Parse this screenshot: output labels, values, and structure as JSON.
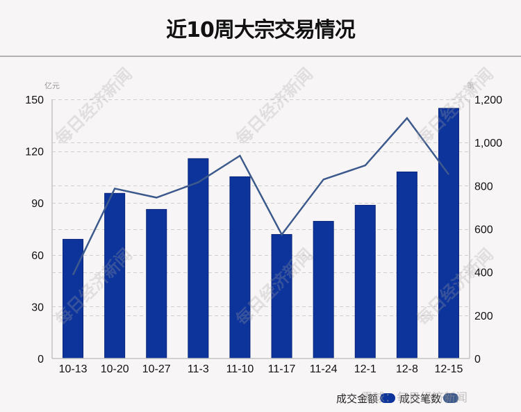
{
  "header": {
    "title": "近10周大宗交易情况"
  },
  "axes": {
    "left_unit": "亿元",
    "right_unit": "笔",
    "left_ticks": [
      "0",
      "30",
      "60",
      "90",
      "120",
      "150"
    ],
    "right_ticks": [
      "0",
      "200",
      "400",
      "600",
      "800",
      "1,000",
      "1,200"
    ]
  },
  "legend": {
    "items": [
      {
        "label": "成交金额",
        "color": "#0d349b"
      },
      {
        "label": "成交笔数",
        "color": "#3d5a8c"
      }
    ]
  },
  "watermark": {
    "text": "每日经济新闻",
    "snowball": "雪球：每日经济新闻"
  },
  "colors": {
    "bar": "#0d349b",
    "bar_border": "#08237a",
    "line": "#3d5a8c",
    "grid": "#cfcfcf",
    "background": "#f8f5f6"
  },
  "chart_data": {
    "type": "bar+line",
    "title": "近10周大宗交易情况",
    "categories": [
      "10-13",
      "10-20",
      "10-27",
      "11-3",
      "11-10",
      "11-17",
      "11-24",
      "12-1",
      "12-8",
      "12-15"
    ],
    "series": [
      {
        "name": "成交金额",
        "type": "bar",
        "axis": "left",
        "unit": "亿元",
        "values": [
          69,
          95.6,
          86.3,
          115.7,
          105.2,
          71.8,
          79.4,
          88.7,
          108,
          144.8
        ]
      },
      {
        "name": "成交笔数",
        "type": "line",
        "axis": "right",
        "unit": "笔",
        "values": [
          387,
          787,
          745,
          816,
          939,
          574,
          829,
          894,
          1113,
          852
        ]
      }
    ],
    "xlabel": "",
    "ylabel_left": "亿元",
    "ylabel_right": "笔",
    "ylim_left": [
      0,
      150
    ],
    "ylim_right": [
      0,
      1200
    ],
    "yticks_left": [
      0,
      30,
      60,
      90,
      120,
      150
    ],
    "yticks_right": [
      0,
      200,
      400,
      600,
      800,
      1000,
      1200
    ],
    "grid": true,
    "legend_position": "bottom-right"
  }
}
